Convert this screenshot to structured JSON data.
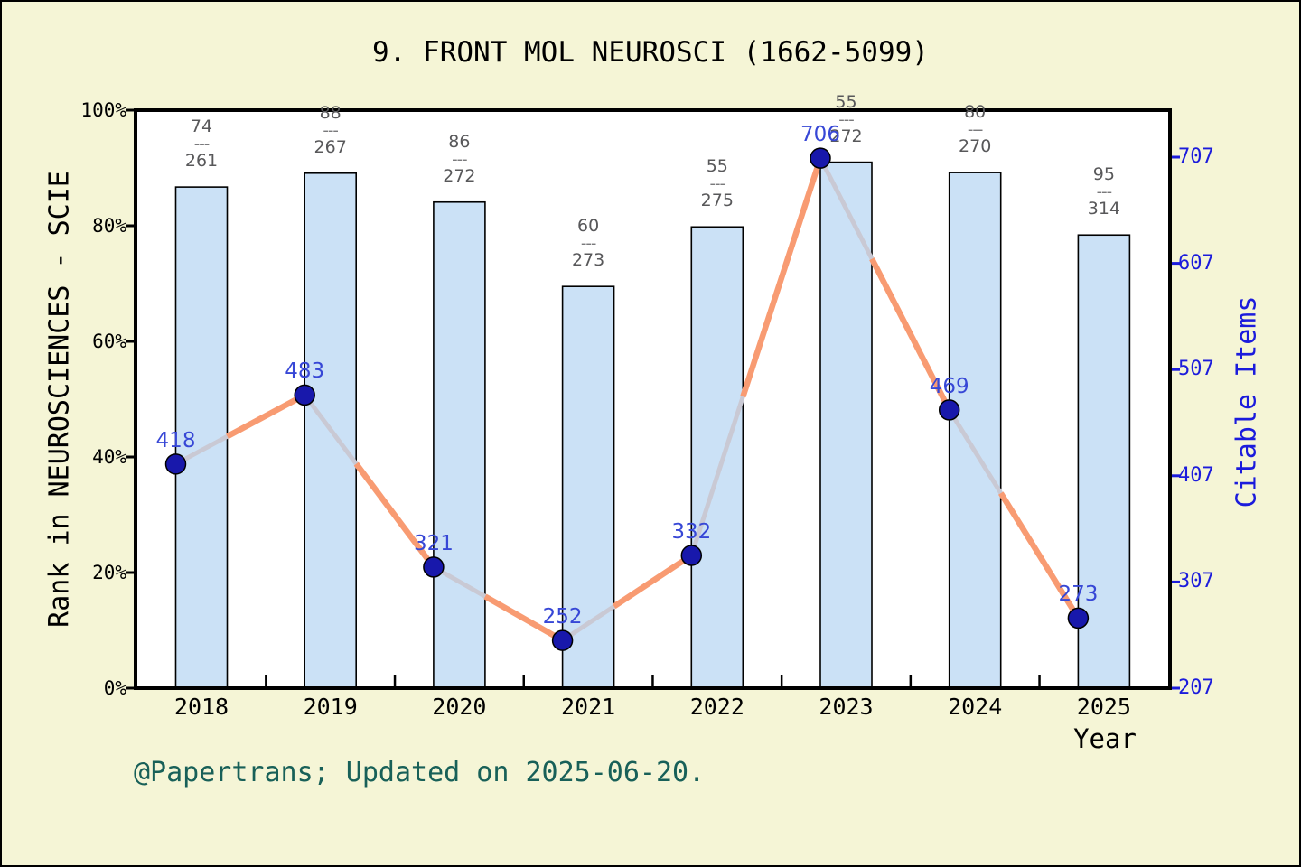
{
  "title": "9. FRONT MOL NEUROSCI (1662-5099)",
  "footer": "@Papertrans; Updated on 2025-06-20.",
  "axes": {
    "left_title": "Rank in NEUROSCIENCES - SCIE",
    "right_title": "Citable Items",
    "x_title": "Year",
    "left_ticks": [
      "0%",
      "20%",
      "40%",
      "60%",
      "80%",
      "100%"
    ],
    "right_ticks": [
      "207",
      "307",
      "407",
      "507",
      "607",
      "707"
    ]
  },
  "chart_data": {
    "type": "bar+line",
    "title": "9. FRONT MOL NEUROSCI (1662-5099)",
    "xlabel": "Year",
    "categories": [
      "2018",
      "2019",
      "2020",
      "2021",
      "2022",
      "2023",
      "2024",
      "2025"
    ],
    "series": [
      {
        "name": "rank-percentile-bars",
        "type": "bar",
        "axis": "left",
        "unit": "percent-of-left-axis",
        "values": [
          86.7,
          89.1,
          84.1,
          69.5,
          79.8,
          91.0,
          89.2,
          78.4
        ],
        "rank_labels": [
          {
            "numerator": "74",
            "denominator": "261"
          },
          {
            "numerator": "88",
            "denominator": "267"
          },
          {
            "numerator": "86",
            "denominator": "272"
          },
          {
            "numerator": "60",
            "denominator": "273"
          },
          {
            "numerator": "55",
            "denominator": "275"
          },
          {
            "numerator": "55",
            "denominator": "272"
          },
          {
            "numerator": "80",
            "denominator": "270"
          },
          {
            "numerator": "95",
            "denominator": "314"
          }
        ]
      },
      {
        "name": "citable-items-line",
        "type": "line",
        "axis": "right",
        "values": [
          418,
          483,
          321,
          252,
          332,
          706,
          469,
          273
        ]
      }
    ],
    "left_axis": {
      "label": "Rank in NEUROSCIENCES - SCIE",
      "ticks": [
        "0%",
        "20%",
        "40%",
        "60%",
        "80%",
        "100%"
      ],
      "range": [
        0,
        100
      ]
    },
    "right_axis": {
      "label": "Citable Items",
      "ticks": [
        207,
        307,
        407,
        507,
        607,
        707
      ],
      "value_at_bottom": 207,
      "units_per_tick": 100
    },
    "legend": "none",
    "grid": false
  },
  "colors": {
    "background": "#F5F5D6",
    "plot_background": "#FFFFFF",
    "bar_fill": "#CBE1F6",
    "bar_edge": "#000000",
    "line_orange": "#F89B72",
    "line_gray": "#C9C9D4",
    "marker_fill": "#1818AB",
    "marker_edge": "#000000",
    "point_label": "#3747D6",
    "right_axis_blue": "#1B1BDC",
    "fraction_gray": "#58585A",
    "footer_teal": "#186058",
    "axis_black": "#000000"
  }
}
